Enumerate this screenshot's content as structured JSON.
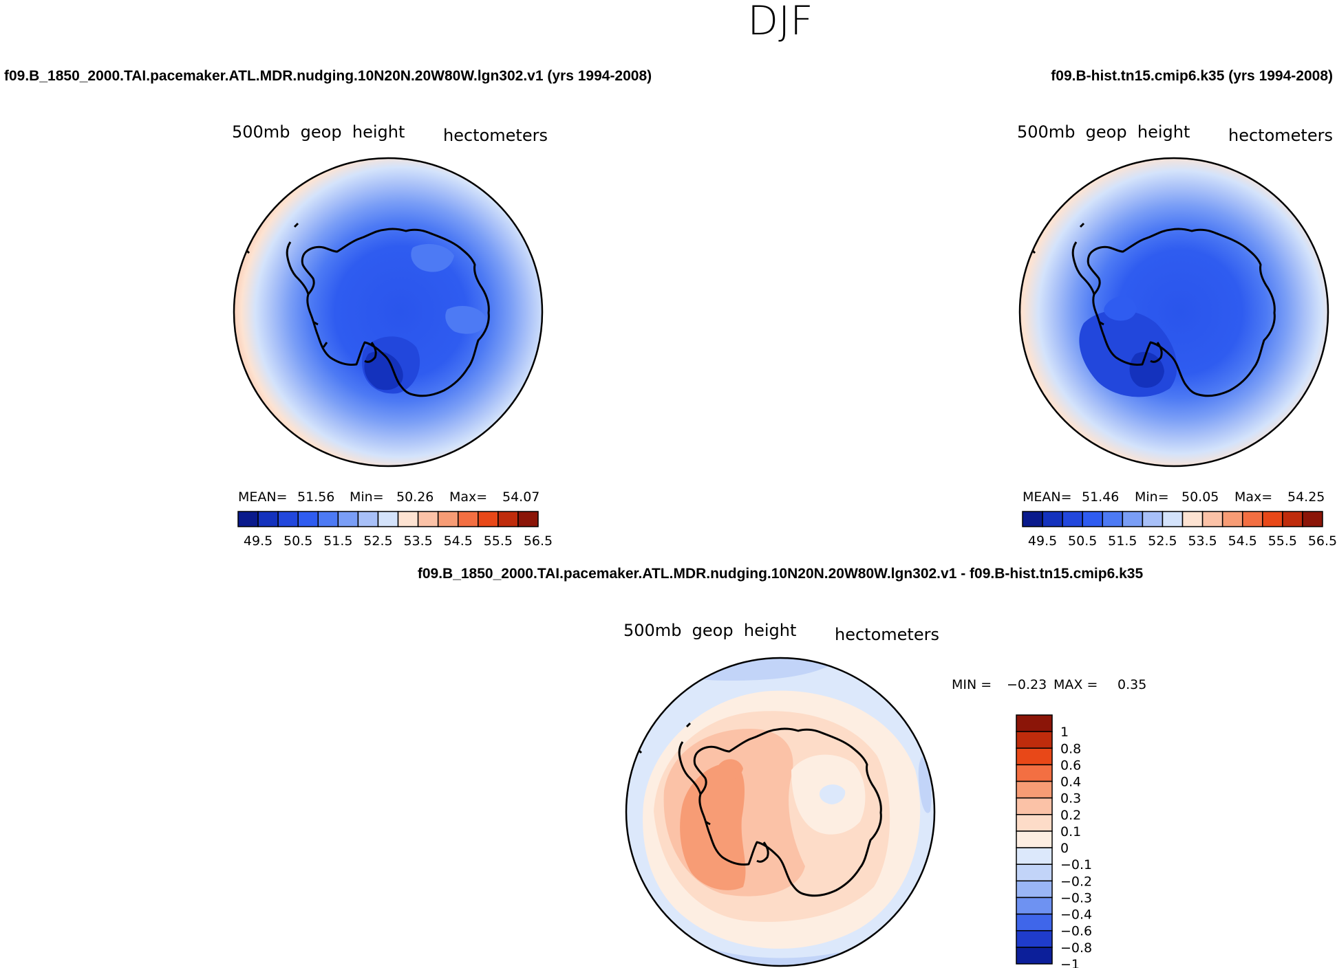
{
  "figure": {
    "season": "DJF",
    "difference_title": "f09.B_1850_2000.TAI.pacemaker.ATL.MDR.nudging.10N20N.20W80W.lgn302.v1 - f09.B-hist.tn15.cmip6.k35"
  },
  "chart_data": [
    {
      "type": "heatmap",
      "title": "f09.B_1850_2000.TAI.pacemaker.ATL.MDR.nudging.10N20N.20W80W.lgn302.v1 (yrs 1994-2008)",
      "variable": "500mb  geop  height",
      "units": "hectometers",
      "projection": "south polar stereographic",
      "stats": {
        "mean_label": "MEAN=",
        "mean": "51.56",
        "min_label": "Min=",
        "min": "50.26",
        "max_label": "Max=",
        "max": "54.07"
      },
      "levels": [
        49.5,
        50,
        50.5,
        51,
        51.5,
        52,
        52.5,
        53,
        53.5,
        54,
        54.5,
        55,
        55.5,
        56,
        56.5
      ],
      "tick_labels": [
        "49.5",
        "50.5",
        "51.5",
        "52.5",
        "53.5",
        "54.5",
        "55.5",
        "56.5"
      ],
      "colors": [
        "#0a1a8c",
        "#1432bd",
        "#2247dc",
        "#2f5cf0",
        "#4d7af4",
        "#7a9ef6",
        "#a8c0f8",
        "#d4e3fb",
        "#fde3d2",
        "#fbc2a7",
        "#f79c75",
        "#f36f42",
        "#e84818",
        "#bf2c0c",
        "#8b1508"
      ]
    },
    {
      "type": "heatmap",
      "title": "f09.B-hist.tn15.cmip6.k35 (yrs 1994-2008)",
      "variable": "500mb  geop  height",
      "units": "hectometers",
      "projection": "south polar stereographic",
      "stats": {
        "mean_label": "MEAN=",
        "mean": "51.46",
        "min_label": "Min=",
        "min": "50.05",
        "max_label": "Max=",
        "max": "54.25"
      },
      "levels": [
        49.5,
        50,
        50.5,
        51,
        51.5,
        52,
        52.5,
        53,
        53.5,
        54,
        54.5,
        55,
        55.5,
        56,
        56.5
      ],
      "tick_labels": [
        "49.5",
        "50.5",
        "51.5",
        "52.5",
        "53.5",
        "54.5",
        "55.5",
        "56.5"
      ],
      "colors": [
        "#0a1a8c",
        "#1432bd",
        "#2247dc",
        "#2f5cf0",
        "#4d7af4",
        "#7a9ef6",
        "#a8c0f8",
        "#d4e3fb",
        "#fde3d2",
        "#fbc2a7",
        "#f79c75",
        "#f36f42",
        "#e84818",
        "#bf2c0c",
        "#8b1508"
      ]
    },
    {
      "type": "heatmap",
      "title": "f09.B_1850_2000.TAI.pacemaker.ATL.MDR.nudging.10N20N.20W80W.lgn302.v1 - f09.B-hist.tn15.cmip6.k35",
      "variable": "500mb  geop  height",
      "units": "hectometers",
      "projection": "south polar stereographic",
      "stats": {
        "min_label": "MIN =",
        "min": "−0.23",
        "max_label": "MAX =",
        "max": "0.35"
      },
      "levels": [
        1,
        0.8,
        0.6,
        0.4,
        0.3,
        0.2,
        0.1,
        0,
        -0.1,
        -0.2,
        -0.3,
        -0.4,
        -0.6,
        -0.8,
        -1
      ],
      "tick_labels": [
        "1",
        "0.8",
        "0.6",
        "0.4",
        "0.3",
        "0.2",
        "0.1",
        "0",
        "−0.1",
        "−0.2",
        "−0.3",
        "−0.4",
        "−0.6",
        "−0.8",
        "−1"
      ],
      "colors": [
        "#8b1508",
        "#bf2c0c",
        "#e84818",
        "#f36f42",
        "#f79c75",
        "#fbc2a7",
        "#fddcc8",
        "#fdeee2",
        "#dce8fb",
        "#c2d4f8",
        "#9ab6f6",
        "#6e92f2",
        "#3f66ea",
        "#1f3ccc",
        "#0c1f9a"
      ]
    }
  ]
}
